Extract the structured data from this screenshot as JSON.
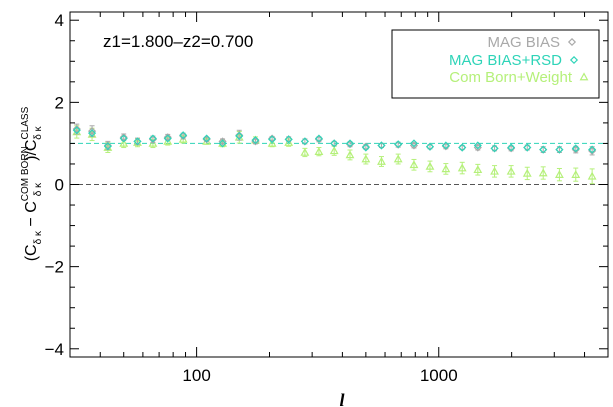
{
  "chart_data": {
    "type": "scatter",
    "title": "",
    "annotation": "z1=1.800–z2=0.700",
    "xlabel": "l",
    "ylabel": {
      "open": "(C",
      "sub1": "δ κ",
      "mid": " − C",
      "sup2": "COM BORN",
      "sub2": "δ κ",
      "slash": ")/C",
      "sup3": "CLASS",
      "sub3": "δ κ"
    },
    "xscale": "log",
    "xlim": [
      30,
      5000
    ],
    "ylim": [
      -4.2,
      4.2
    ],
    "xticks": [
      100,
      1000
    ],
    "xtick_labels": [
      "100",
      "1000"
    ],
    "yticks": [
      4,
      2,
      0,
      -2,
      -4
    ],
    "ytick_labels": [
      "4",
      "2",
      "0",
      "−2",
      "−4"
    ],
    "legend_position": "top-right",
    "reference_lines": [
      {
        "y": 0,
        "color": "#555555",
        "style": "dashed"
      },
      {
        "y": 1.0,
        "color": "#2ed4b8",
        "style": "dashed"
      }
    ],
    "series": [
      {
        "name": "MAG BIAS",
        "marker": "diamond",
        "color": "#a9a9a9",
        "x": [
          32,
          37,
          43,
          50,
          57,
          66,
          76,
          88,
          110,
          128,
          150,
          175,
          205,
          240,
          280,
          320,
          370,
          430,
          500,
          580,
          680,
          790,
          920,
          1070,
          1250,
          1450,
          1700,
          1990,
          2320,
          2700,
          3150,
          3680,
          4300
        ],
        "y": [
          1.35,
          1.3,
          0.95,
          1.15,
          1.05,
          1.1,
          1.15,
          1.18,
          1.1,
          1.05,
          1.2,
          1.05,
          1.12,
          1.1,
          1.05,
          1.1,
          1.0,
          0.98,
          0.92,
          0.95,
          0.97,
          0.95,
          0.92,
          0.93,
          0.9,
          0.9,
          0.88,
          0.88,
          0.9,
          0.85,
          0.85,
          0.85,
          0.82
        ],
        "err": [
          0.12,
          0.13,
          0.1,
          0.08,
          0.08,
          0.08,
          0.07,
          0.07,
          0.05,
          0.06,
          0.12,
          0.06,
          0.05,
          0.06,
          0.06,
          0.06,
          0.05,
          0.06,
          0.06,
          0.05,
          0.06,
          0.06,
          0.05,
          0.06,
          0.05,
          0.06,
          0.06,
          0.06,
          0.06,
          0.07,
          0.07,
          0.08,
          0.1
        ]
      },
      {
        "name": "MAG BIAS+RSD",
        "marker": "diamond",
        "color": "#2ed4b8",
        "x": [
          32,
          37,
          43,
          50,
          57,
          66,
          76,
          88,
          110,
          128,
          150,
          175,
          205,
          240,
          280,
          320,
          370,
          430,
          500,
          580,
          680,
          790,
          920,
          1070,
          1250,
          1450,
          1700,
          1990,
          2320,
          2700,
          3150,
          3680,
          4300
        ],
        "y": [
          1.32,
          1.25,
          0.93,
          1.12,
          1.05,
          1.12,
          1.12,
          1.2,
          1.12,
          1.0,
          1.18,
          1.08,
          1.1,
          1.1,
          1.05,
          1.12,
          1.0,
          1.0,
          0.9,
          0.95,
          0.98,
          1.0,
          0.92,
          0.95,
          0.9,
          0.95,
          0.88,
          0.9,
          0.9,
          0.85,
          0.85,
          0.88,
          0.85
        ]
      },
      {
        "name": "Com Born+Weight",
        "marker": "triangle",
        "color": "#b5f07a",
        "x": [
          32,
          37,
          43,
          50,
          57,
          66,
          76,
          88,
          110,
          128,
          150,
          175,
          205,
          240,
          280,
          320,
          370,
          430,
          500,
          580,
          680,
          790,
          920,
          1070,
          1250,
          1450,
          1700,
          1990,
          2320,
          2700,
          3150,
          3680,
          4300
        ],
        "y": [
          1.28,
          1.22,
          0.9,
          1.0,
          1.02,
          1.0,
          1.05,
          1.1,
          1.05,
          1.0,
          1.15,
          1.08,
          1.0,
          1.02,
          0.78,
          0.8,
          0.82,
          0.72,
          0.62,
          0.56,
          0.62,
          0.48,
          0.44,
          0.38,
          0.4,
          0.36,
          0.32,
          0.32,
          0.27,
          0.28,
          0.24,
          0.24,
          0.2
        ],
        "err": [
          0.15,
          0.15,
          0.12,
          0.1,
          0.1,
          0.1,
          0.09,
          0.09,
          0.07,
          0.08,
          0.14,
          0.08,
          0.08,
          0.09,
          0.1,
          0.1,
          0.11,
          0.12,
          0.12,
          0.12,
          0.12,
          0.13,
          0.13,
          0.13,
          0.14,
          0.13,
          0.14,
          0.14,
          0.15,
          0.15,
          0.15,
          0.16,
          0.18
        ]
      }
    ]
  }
}
